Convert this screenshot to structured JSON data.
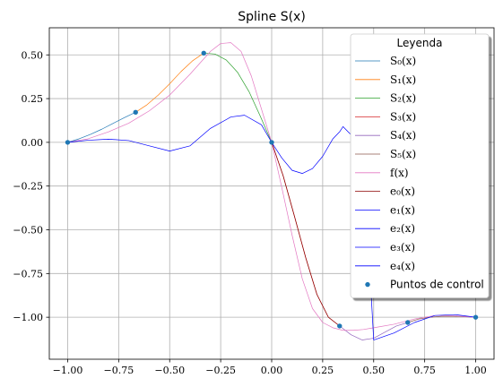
{
  "chart_data": {
    "type": "line",
    "title": "Spline S(x)",
    "xlabel": "",
    "ylabel": "",
    "xlim": [
      -1.09,
      1.09
    ],
    "ylim": [
      -1.24,
      0.655
    ],
    "grid": true,
    "x_ticks": [
      -1.0,
      -0.75,
      -0.5,
      -0.25,
      0.0,
      0.25,
      0.5,
      0.75,
      1.0
    ],
    "x_tick_labels": [
      "−1.00",
      "−0.75",
      "−0.50",
      "−0.25",
      "0.00",
      "0.25",
      "0.50",
      "0.75",
      "1.00"
    ],
    "y_ticks": [
      0.5,
      0.25,
      0.0,
      -0.25,
      -0.5,
      -0.75,
      -1.0
    ],
    "y_tick_labels": [
      "0.50",
      "0.25",
      "0.00",
      "−0.25",
      "−0.50",
      "−0.75",
      "−1.00"
    ],
    "legend": {
      "title": "Leyenda",
      "position": "top-right",
      "entries": [
        {
          "label": "S₀(x)",
          "color": "#1f77b4",
          "kind": "line"
        },
        {
          "label": "S₁(x)",
          "color": "#ff7f0e",
          "kind": "line"
        },
        {
          "label": "S₂(x)",
          "color": "#2ca02c",
          "kind": "line"
        },
        {
          "label": "S₃(x)",
          "color": "#d62728",
          "kind": "line"
        },
        {
          "label": "S₄(x)",
          "color": "#9467bd",
          "kind": "line"
        },
        {
          "label": "S₅(x)",
          "color": "#8c564b",
          "kind": "line"
        },
        {
          "label": "f(x)",
          "color": "#e377c2",
          "kind": "line"
        },
        {
          "label": "e₀(x)",
          "color": "#8b0000",
          "kind": "line"
        },
        {
          "label": "e₁(x)",
          "color": "#0000ff",
          "kind": "line"
        },
        {
          "label": "e₂(x)",
          "color": "#0000ff",
          "kind": "line"
        },
        {
          "label": "e₃(x)",
          "color": "#0000ff",
          "kind": "line"
        },
        {
          "label": "e₄(x)",
          "color": "#0000ff",
          "kind": "line"
        },
        {
          "label": "Puntos de control",
          "color": "#1f77b4",
          "kind": "point"
        }
      ]
    },
    "series": [
      {
        "name": "S₀(x)",
        "color": "#1f77b4",
        "x": [
          -1.0,
          -0.944,
          -0.889,
          -0.833,
          -0.778,
          -0.722,
          -0.667
        ],
        "y": [
          0.0,
          0.02,
          0.045,
          0.075,
          0.108,
          0.141,
          0.172
        ]
      },
      {
        "name": "S₁(x)",
        "color": "#ff7f0e",
        "x": [
          -0.667,
          -0.611,
          -0.556,
          -0.5,
          -0.444,
          -0.389,
          -0.333
        ],
        "y": [
          0.172,
          0.215,
          0.27,
          0.335,
          0.405,
          0.465,
          0.51
        ]
      },
      {
        "name": "S₂(x)",
        "color": "#2ca02c",
        "x": [
          -0.333,
          -0.278,
          -0.222,
          -0.167,
          -0.111,
          -0.056,
          0.0
        ],
        "y": [
          0.51,
          0.505,
          0.47,
          0.4,
          0.29,
          0.15,
          0.0
        ]
      },
      {
        "name": "S₃(x)",
        "color": "#d62728",
        "x": [
          0.0,
          0.056,
          0.111,
          0.167,
          0.222,
          0.278,
          0.333
        ],
        "y": [
          0.0,
          -0.19,
          -0.42,
          -0.66,
          -0.87,
          -1.0,
          -1.05
        ]
      },
      {
        "name": "S₄(x)",
        "color": "#9467bd",
        "x": [
          0.333,
          0.389,
          0.444,
          0.5,
          0.556,
          0.611,
          0.667
        ],
        "y": [
          -1.05,
          -1.1,
          -1.13,
          -1.12,
          -1.085,
          -1.05,
          -1.03
        ]
      },
      {
        "name": "S₅(x)",
        "color": "#8c564b",
        "x": [
          0.667,
          0.722,
          0.778,
          0.833,
          0.889,
          0.944,
          1.0
        ],
        "y": [
          -1.03,
          -1.01,
          -1.0,
          -0.995,
          -0.995,
          -0.997,
          -1.0
        ]
      },
      {
        "name": "f(x)",
        "color": "#e377c2",
        "x": [
          -1.0,
          -0.9,
          -0.8,
          -0.7,
          -0.6,
          -0.5,
          -0.4,
          -0.3,
          -0.25,
          -0.2,
          -0.15,
          -0.1,
          -0.05,
          0.0,
          0.05,
          0.1,
          0.15,
          0.2,
          0.25,
          0.3,
          0.35,
          0.4,
          0.45,
          0.5,
          0.6,
          0.7,
          0.8,
          0.85,
          0.9,
          1.0
        ],
        "y": [
          0.0,
          0.02,
          0.06,
          0.11,
          0.18,
          0.27,
          0.39,
          0.52,
          0.565,
          0.57,
          0.52,
          0.38,
          0.19,
          0.0,
          -0.26,
          -0.53,
          -0.78,
          -0.95,
          -1.03,
          -1.06,
          -1.075,
          -1.075,
          -1.07,
          -1.06,
          -1.04,
          -1.01,
          -0.99,
          -0.99,
          -0.992,
          -1.0
        ]
      },
      {
        "name": "e₀(x)",
        "color": "#8b0000",
        "x": [
          0.0,
          0.056,
          0.111,
          0.167,
          0.222,
          0.278,
          0.333
        ],
        "y": [
          0.0,
          -0.19,
          -0.42,
          -0.66,
          -0.87,
          -1.0,
          -1.05
        ]
      },
      {
        "name": "e₁(x)",
        "color": "#0000ff",
        "x": [
          -1.0,
          -0.9,
          -0.8,
          -0.7,
          -0.6,
          -0.5,
          -0.4,
          -0.3,
          -0.2,
          -0.133,
          -0.05,
          0.0,
          0.05,
          0.1,
          0.15,
          0.2,
          0.25,
          0.3,
          0.333,
          0.35,
          0.4,
          0.45,
          0.5,
          0.6,
          0.7,
          0.8,
          0.9,
          1.0
        ],
        "y": [
          0.0,
          0.012,
          0.018,
          0.01,
          -0.02,
          -0.05,
          -0.02,
          0.08,
          0.145,
          0.155,
          0.1,
          0.0,
          -0.09,
          -0.16,
          -0.178,
          -0.15,
          -0.08,
          0.02,
          0.06,
          0.09,
          0.03,
          -0.06,
          -1.13,
          -1.09,
          -1.03,
          -0.99,
          -0.985,
          -1.0
        ]
      }
    ],
    "control_points": {
      "name": "Puntos de control",
      "color": "#1f77b4",
      "x": [
        -1.0,
        -0.667,
        -0.333,
        0.0,
        0.333,
        0.667,
        1.0
      ],
      "y": [
        0.0,
        0.172,
        0.51,
        0.0,
        -1.05,
        -1.03,
        -1.0
      ]
    }
  }
}
